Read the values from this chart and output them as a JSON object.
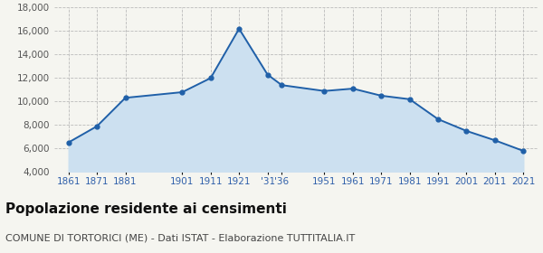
{
  "years": [
    1861,
    1871,
    1881,
    1901,
    1911,
    1921,
    1931,
    1936,
    1951,
    1961,
    1971,
    1981,
    1991,
    2001,
    2011,
    2021
  ],
  "labels": [
    "1861",
    "1871",
    "1881",
    "1901",
    "1911",
    "1921",
    "'31",
    "'36",
    "1951",
    "1961",
    "1971",
    "1981",
    "1991",
    "2001",
    "2011",
    "2021"
  ],
  "values": [
    6520,
    7900,
    10320,
    10800,
    12000,
    16200,
    12300,
    11400,
    10900,
    11100,
    10500,
    10200,
    8500,
    7500,
    6700,
    5800
  ],
  "line_color": "#2060a8",
  "fill_color": "#cce0f0",
  "marker": "o",
  "markersize": 3.5,
  "linewidth": 1.4,
  "ylim": [
    4000,
    18000
  ],
  "yticks": [
    4000,
    6000,
    8000,
    10000,
    12000,
    14000,
    16000,
    18000
  ],
  "title": "Popolazione residente ai censimenti",
  "subtitle": "COMUNE DI TORTORICI (ME) - Dati ISTAT - Elaborazione TUTTITALIA.IT",
  "title_fontsize": 11,
  "subtitle_fontsize": 8,
  "label_fontsize": 7.5,
  "ytick_fontsize": 7.5,
  "bg_color": "#f5f5f0",
  "grid_color": "#bbbbbb"
}
